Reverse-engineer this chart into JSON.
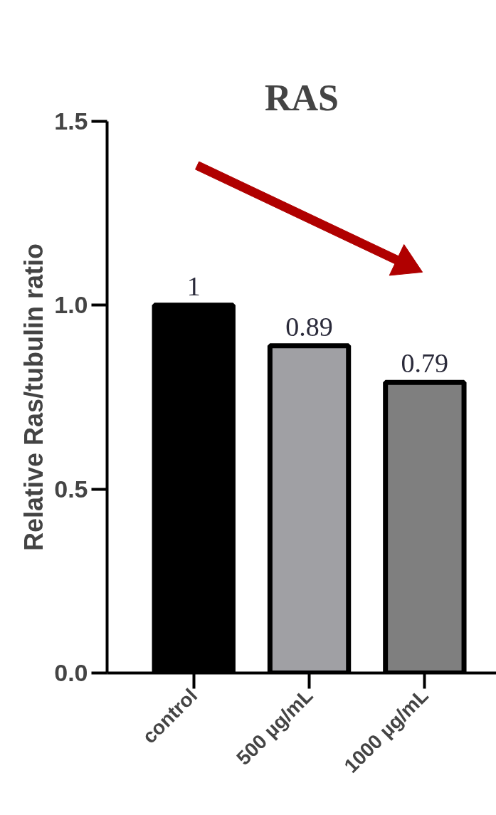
{
  "chart_data": {
    "type": "bar",
    "title": "RAS",
    "ylabel": "Relative Ras/tubulin ratio",
    "categories": [
      "control",
      "500 µg/mL",
      "1000 µg/mL"
    ],
    "values": [
      1,
      0.89,
      0.79
    ],
    "colors": [
      "#000000",
      "#a0a0a4",
      "#7f7f7f"
    ],
    "value_labels": [
      "1",
      "0.89",
      "0.79"
    ],
    "ylim": [
      0,
      1.5
    ],
    "yticks": [
      {
        "value": 0,
        "label": "0.0"
      },
      {
        "value": 0.5,
        "label": "0.5"
      },
      {
        "value": 1.0,
        "label": "1.0"
      },
      {
        "value": 1.5,
        "label": "1.5"
      }
    ],
    "grid": false
  }
}
